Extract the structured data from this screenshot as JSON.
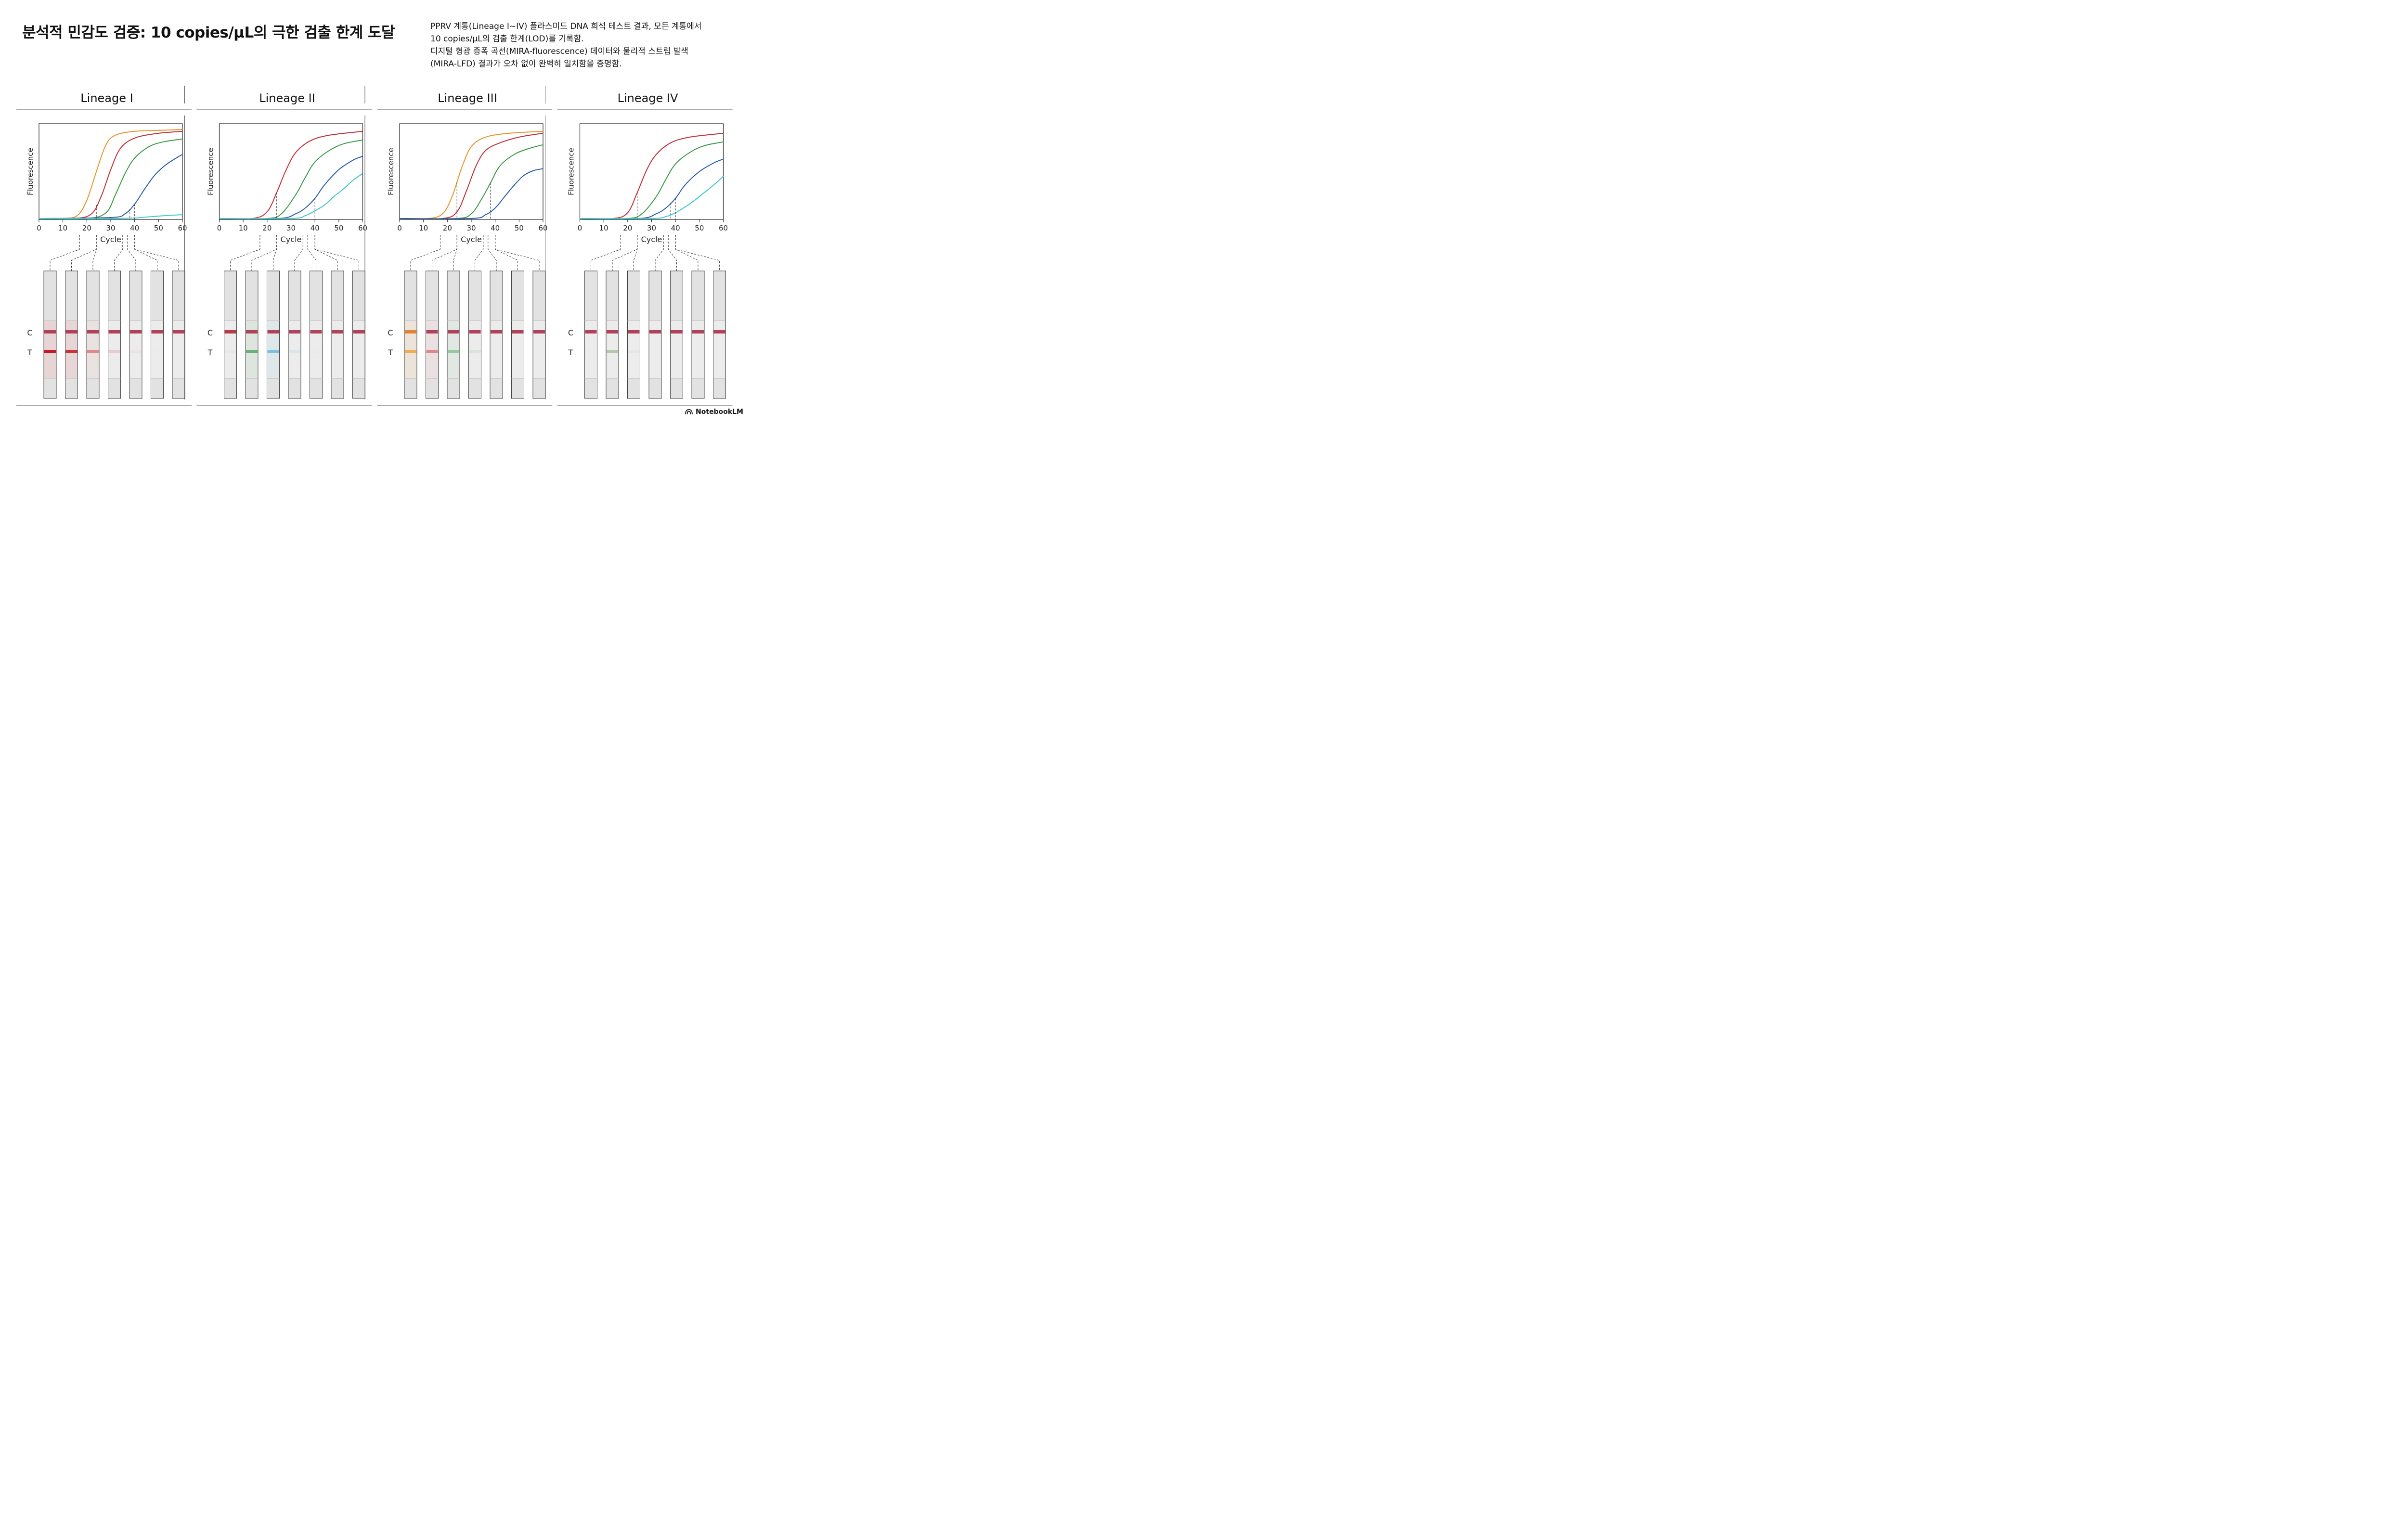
{
  "title": "분석적 민감도 검증: 10 copies/μL의 극한 검출 한계 도달",
  "description": [
    "PPRV 계통(Lineage I~IV) 플라스미드 DNA 희석 테스트 결과, 모든 계통에서",
    "10 copies/μL의 검출 한계(LOD)를 기록함.",
    "디지털 형광 증폭 곡선(MIRA-fluorescence) 데이터와 물리적 스트립 발색",
    "(MIRA-LFD) 결과가 오차 없이 완벽히 일치함을 증명함."
  ],
  "brand": "NotebookLM",
  "colors": {
    "orange": "#e8952a",
    "red": "#c0303a",
    "green": "#3a9a48",
    "blue": "#2a5ea8",
    "cyan": "#3cc8cf",
    "control_line": "#a8304a"
  },
  "chart_data": [
    {
      "type": "line",
      "panel_title": "Lineage I",
      "xlabel": "Cycle",
      "ylabel": "Fluorescence",
      "xlim": [
        0,
        60
      ],
      "xticks": [
        "0",
        "10",
        "20",
        "30",
        "40",
        "50",
        "60"
      ],
      "series": [
        {
          "color": "orange",
          "points": [
            [
              0,
              0.01
            ],
            [
              10,
              0.01
            ],
            [
              16,
              0.04
            ],
            [
              20,
              0.2
            ],
            [
              24,
              0.5
            ],
            [
              28,
              0.78
            ],
            [
              32,
              0.88
            ],
            [
              40,
              0.92
            ],
            [
              50,
              0.93
            ],
            [
              60,
              0.94
            ]
          ]
        },
        {
          "color": "red",
          "points": [
            [
              0,
              0.01
            ],
            [
              15,
              0.01
            ],
            [
              22,
              0.06
            ],
            [
              26,
              0.24
            ],
            [
              30,
              0.52
            ],
            [
              34,
              0.74
            ],
            [
              40,
              0.85
            ],
            [
              50,
              0.9
            ],
            [
              60,
              0.92
            ]
          ]
        },
        {
          "color": "green",
          "points": [
            [
              0,
              0.01
            ],
            [
              20,
              0.01
            ],
            [
              28,
              0.07
            ],
            [
              32,
              0.26
            ],
            [
              36,
              0.48
            ],
            [
              40,
              0.64
            ],
            [
              46,
              0.76
            ],
            [
              52,
              0.81
            ],
            [
              60,
              0.84
            ]
          ]
        },
        {
          "color": "blue",
          "points": [
            [
              0,
              0.01
            ],
            [
              30,
              0.02
            ],
            [
              36,
              0.06
            ],
            [
              40,
              0.16
            ],
            [
              44,
              0.31
            ],
            [
              48,
              0.45
            ],
            [
              52,
              0.55
            ],
            [
              56,
              0.62
            ],
            [
              60,
              0.68
            ]
          ]
        },
        {
          "color": "cyan",
          "points": [
            [
              0,
              0.01
            ],
            [
              30,
              0.01
            ],
            [
              40,
              0.015
            ],
            [
              45,
              0.025
            ],
            [
              50,
              0.035
            ],
            [
              55,
              0.043
            ],
            [
              60,
              0.05
            ]
          ]
        }
      ],
      "dashed_markers_x": [
        24,
        38,
        40
      ],
      "strips": {
        "c_label": "C",
        "t_label": "T",
        "c_lines": [
          "#a8304a",
          "#a8304a",
          "#a8304a",
          "#a8304a",
          "#a8304a",
          "#a8304a",
          "#a8304a"
        ],
        "t_lines": [
          "#c0101a",
          "#c01820",
          "#d85050",
          "#e09098",
          "#ecc0c4",
          "#f0dcdc",
          "#f2e6e6"
        ],
        "t_intensity": [
          0.95,
          0.85,
          0.6,
          0.35,
          0.2,
          0.08,
          0.0
        ]
      }
    },
    {
      "type": "line",
      "panel_title": "Lineage II",
      "xlabel": "Cycle",
      "ylabel": "Fluorescence",
      "xlim": [
        0,
        60
      ],
      "xticks": [
        "0",
        "10",
        "20",
        "30",
        "40",
        "50",
        "60"
      ],
      "series": [
        {
          "color": "red",
          "points": [
            [
              0,
              0.01
            ],
            [
              14,
              0.01
            ],
            [
              20,
              0.08
            ],
            [
              24,
              0.28
            ],
            [
              28,
              0.52
            ],
            [
              32,
              0.7
            ],
            [
              38,
              0.82
            ],
            [
              46,
              0.88
            ],
            [
              60,
              0.92
            ]
          ]
        },
        {
          "color": "green",
          "points": [
            [
              0,
              0.01
            ],
            [
              20,
              0.01
            ],
            [
              26,
              0.06
            ],
            [
              32,
              0.26
            ],
            [
              36,
              0.44
            ],
            [
              40,
              0.6
            ],
            [
              46,
              0.72
            ],
            [
              52,
              0.79
            ],
            [
              60,
              0.83
            ]
          ]
        },
        {
          "color": "blue",
          "points": [
            [
              0,
              0.01
            ],
            [
              25,
              0.01
            ],
            [
              32,
              0.06
            ],
            [
              36,
              0.12
            ],
            [
              40,
              0.22
            ],
            [
              44,
              0.36
            ],
            [
              50,
              0.52
            ],
            [
              56,
              0.62
            ],
            [
              60,
              0.66
            ]
          ]
        },
        {
          "color": "cyan",
          "points": [
            [
              0,
              0.01
            ],
            [
              30,
              0.01
            ],
            [
              36,
              0.04
            ],
            [
              40,
              0.09
            ],
            [
              44,
              0.15
            ],
            [
              48,
              0.24
            ],
            [
              52,
              0.32
            ],
            [
              56,
              0.41
            ],
            [
              60,
              0.48
            ]
          ]
        }
      ],
      "dashed_markers_x": [
        24,
        40
      ],
      "strips": {
        "c_label": "C",
        "t_label": "T",
        "c_lines": [
          "#b02838",
          "#a8304a",
          "#a8304a",
          "#a8304a",
          "#a8304a",
          "#a8304a",
          "#a8304a"
        ],
        "t_lines": [
          "#e8c8cc",
          "#3a9a48",
          "#38a8d8",
          "#b0d8e8",
          "#d0e8f0",
          "#eef2f4",
          "#f2f2f2"
        ],
        "t_intensity": [
          0.15,
          0.7,
          0.6,
          0.3,
          0.18,
          0.05,
          0.0
        ]
      }
    },
    {
      "type": "line",
      "panel_title": "Lineage III",
      "xlabel": "Cycle",
      "ylabel": "Fluorescence",
      "xlim": [
        0,
        60
      ],
      "xticks": [
        "0",
        "10",
        "20",
        "30",
        "40",
        "50",
        "60"
      ],
      "series": [
        {
          "color": "orange",
          "points": [
            [
              0,
              0.01
            ],
            [
              12,
              0.01
            ],
            [
              18,
              0.06
            ],
            [
              22,
              0.24
            ],
            [
              26,
              0.54
            ],
            [
              30,
              0.76
            ],
            [
              36,
              0.86
            ],
            [
              46,
              0.9
            ],
            [
              60,
              0.92
            ]
          ]
        },
        {
          "color": "red",
          "points": [
            [
              0,
              0.01
            ],
            [
              18,
              0.01
            ],
            [
              24,
              0.08
            ],
            [
              28,
              0.3
            ],
            [
              32,
              0.56
            ],
            [
              36,
              0.72
            ],
            [
              42,
              0.8
            ],
            [
              50,
              0.86
            ],
            [
              60,
              0.9
            ]
          ]
        },
        {
          "color": "green",
          "points": [
            [
              0,
              0.01
            ],
            [
              24,
              0.01
            ],
            [
              30,
              0.06
            ],
            [
              34,
              0.2
            ],
            [
              38,
              0.38
            ],
            [
              42,
              0.56
            ],
            [
              48,
              0.68
            ],
            [
              54,
              0.74
            ],
            [
              60,
              0.78
            ]
          ]
        },
        {
          "color": "blue",
          "points": [
            [
              0,
              0.01
            ],
            [
              30,
              0.01
            ],
            [
              36,
              0.05
            ],
            [
              40,
              0.12
            ],
            [
              44,
              0.24
            ],
            [
              48,
              0.36
            ],
            [
              52,
              0.46
            ],
            [
              56,
              0.51
            ],
            [
              60,
              0.53
            ]
          ]
        }
      ],
      "dashed_markers_x": [
        24,
        38
      ],
      "strips": {
        "c_label": "C",
        "t_label": "T",
        "c_lines": [
          "#e07820",
          "#a8304a",
          "#a8304a",
          "#a8304a",
          "#a8304a",
          "#a8304a",
          "#a8304a"
        ],
        "t_lines": [
          "#f0a030",
          "#d84850",
          "#58b060",
          "#a8d0a8",
          "#e0eee0",
          "#f2f2f2",
          "#f2f2f2"
        ],
        "t_intensity": [
          0.8,
          0.6,
          0.55,
          0.3,
          0.1,
          0.0,
          0.0
        ]
      }
    },
    {
      "type": "line",
      "panel_title": "Lineage IV",
      "xlabel": "Cycle",
      "ylabel": "Fluorescence",
      "xlim": [
        0,
        60
      ],
      "xticks": [
        "0",
        "10",
        "20",
        "30",
        "40",
        "50",
        "60"
      ],
      "series": [
        {
          "color": "red",
          "points": [
            [
              0,
              0.01
            ],
            [
              14,
              0.01
            ],
            [
              20,
              0.07
            ],
            [
              24,
              0.28
            ],
            [
              28,
              0.52
            ],
            [
              32,
              0.68
            ],
            [
              38,
              0.8
            ],
            [
              46,
              0.86
            ],
            [
              60,
              0.9
            ]
          ]
        },
        {
          "color": "green",
          "points": [
            [
              0,
              0.01
            ],
            [
              20,
              0.01
            ],
            [
              26,
              0.06
            ],
            [
              32,
              0.24
            ],
            [
              36,
              0.42
            ],
            [
              40,
              0.58
            ],
            [
              46,
              0.7
            ],
            [
              52,
              0.77
            ],
            [
              60,
              0.81
            ]
          ]
        },
        {
          "color": "blue",
          "points": [
            [
              0,
              0.01
            ],
            [
              25,
              0.01
            ],
            [
              32,
              0.06
            ],
            [
              36,
              0.12
            ],
            [
              40,
              0.22
            ],
            [
              44,
              0.36
            ],
            [
              50,
              0.5
            ],
            [
              56,
              0.59
            ],
            [
              60,
              0.63
            ]
          ]
        },
        {
          "color": "cyan",
          "points": [
            [
              0,
              0.01
            ],
            [
              30,
              0.01
            ],
            [
              36,
              0.03
            ],
            [
              40,
              0.07
            ],
            [
              44,
              0.13
            ],
            [
              48,
              0.2
            ],
            [
              52,
              0.28
            ],
            [
              56,
              0.36
            ],
            [
              60,
              0.45
            ]
          ]
        }
      ],
      "dashed_markers_x": [
        24,
        38,
        40
      ],
      "strips": {
        "c_label": "C",
        "t_label": "T",
        "c_lines": [
          "#a8304a",
          "#a8304a",
          "#a8304a",
          "#a8304a",
          "#a8304a",
          "#a8304a",
          "#a8304a"
        ],
        "t_lines": [
          "#ecd8dc",
          "#78a860",
          "#c8d8c0",
          "#e8ece8",
          "#eeeeee",
          "#f2f2f2",
          "#f2f2f2"
        ],
        "t_intensity": [
          0.1,
          0.5,
          0.2,
          0.08,
          0.05,
          0.0,
          0.0
        ]
      }
    }
  ]
}
